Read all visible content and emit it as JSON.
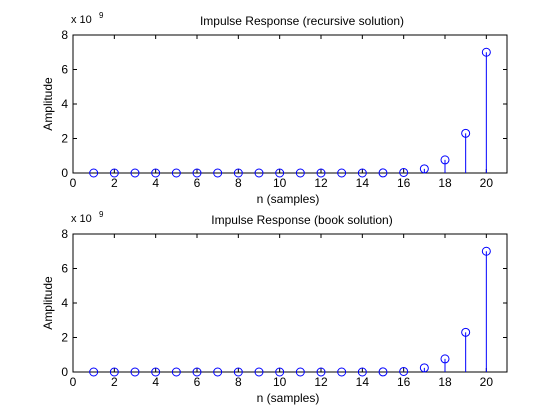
{
  "chart_data": [
    {
      "type": "stem",
      "title": "Impulse Response (recursive solution)",
      "xlabel": "n (samples)",
      "ylabel": "Amplitude",
      "y_exponent_label": "x 10",
      "y_exponent_power": "9",
      "xlim": [
        0,
        21
      ],
      "ylim": [
        0,
        8
      ],
      "xticks": [
        0,
        2,
        4,
        6,
        8,
        10,
        12,
        14,
        16,
        18,
        20
      ],
      "yticks": [
        0,
        2,
        4,
        6,
        8
      ],
      "grid": false,
      "marker": "circle",
      "color": "#0000ff",
      "x": [
        1,
        2,
        3,
        4,
        5,
        6,
        7,
        8,
        9,
        10,
        11,
        12,
        13,
        14,
        15,
        16,
        17,
        18,
        19,
        20
      ],
      "y": [
        0,
        0,
        0,
        0,
        0,
        0,
        0,
        0,
        0,
        0,
        0,
        0,
        0,
        0,
        0.004,
        0.03,
        0.24,
        0.76,
        2.3,
        7.0
      ]
    },
    {
      "type": "stem",
      "title": "Impulse Response (book solution)",
      "xlabel": "n (samples)",
      "ylabel": "Amplitude",
      "y_exponent_label": "x 10",
      "y_exponent_power": "9",
      "xlim": [
        0,
        21
      ],
      "ylim": [
        0,
        8
      ],
      "xticks": [
        0,
        2,
        4,
        6,
        8,
        10,
        12,
        14,
        16,
        18,
        20
      ],
      "yticks": [
        0,
        2,
        4,
        6,
        8
      ],
      "grid": false,
      "marker": "circle",
      "color": "#0000ff",
      "x": [
        1,
        2,
        3,
        4,
        5,
        6,
        7,
        8,
        9,
        10,
        11,
        12,
        13,
        14,
        15,
        16,
        17,
        18,
        19,
        20
      ],
      "y": [
        0,
        0,
        0,
        0,
        0,
        0,
        0,
        0,
        0,
        0,
        0,
        0,
        0,
        0,
        0.004,
        0.03,
        0.24,
        0.76,
        2.3,
        7.0
      ]
    }
  ]
}
